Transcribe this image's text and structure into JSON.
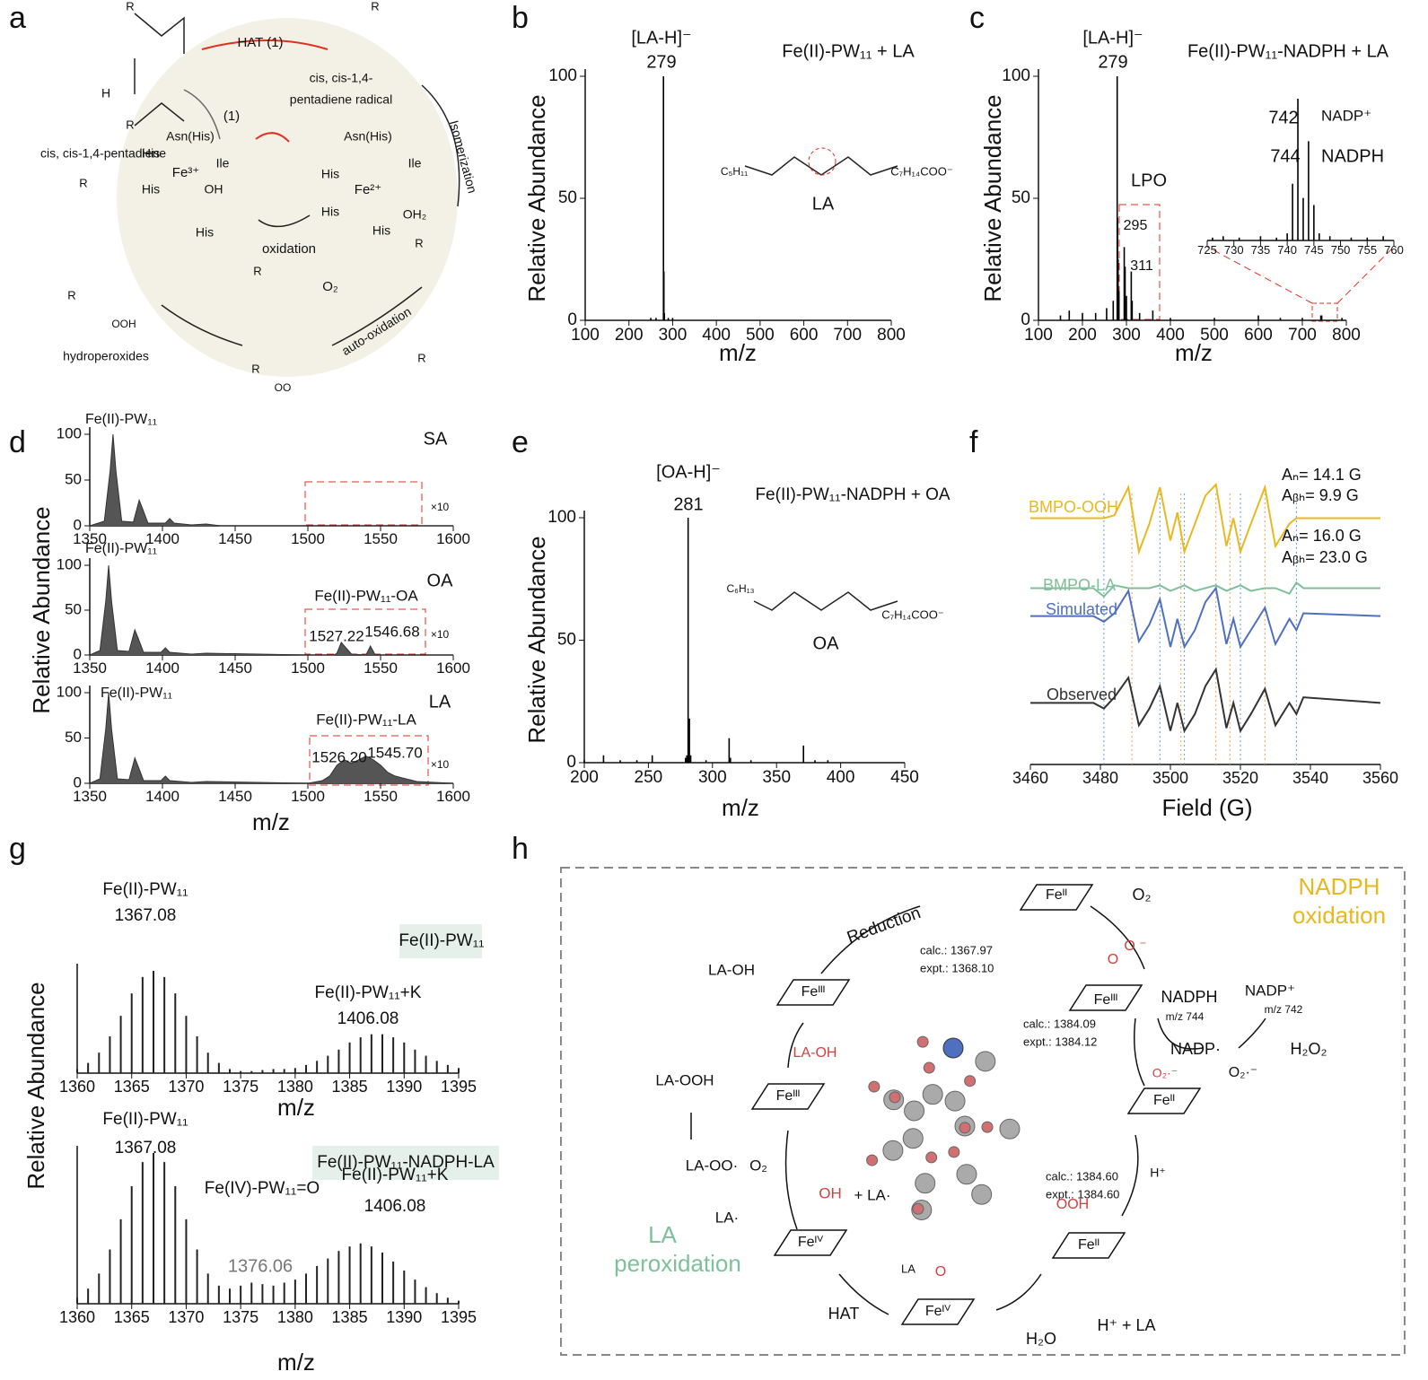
{
  "panel_labels": [
    "a",
    "b",
    "c",
    "d",
    "e",
    "f",
    "g",
    "h"
  ],
  "panel_a": {
    "labels": [
      "HAT (1)",
      "cis, cis-1,4-",
      "pentadiene radical",
      "Isomerization",
      "cis, cis-1,4-pentadiene",
      "(1)",
      "Asn(His)",
      "His",
      "Fe³⁺",
      "Ile",
      "His",
      "OH",
      "His",
      "Asn(His)",
      "His",
      "Fe²⁺",
      "Ile",
      "His",
      "OH₂",
      "His",
      "oxidation",
      "O₂",
      "auto-oxidation",
      "hydroperoxides",
      "OOH",
      "OO",
      "H",
      "R",
      "R",
      "R",
      "R",
      "R",
      "R",
      "R",
      "R",
      "R"
    ]
  },
  "chart_data": [
    {
      "type": "stem",
      "xlim": [
        100,
        800
      ],
      "ylim": [
        0,
        100
      ],
      "xticks": [
        100,
        200,
        300,
        400,
        500,
        600,
        700,
        800
      ],
      "yticks": [
        0,
        50,
        100
      ],
      "x": [
        250,
        262,
        279,
        280,
        281,
        290,
        300
      ],
      "values": [
        1,
        1,
        100,
        20,
        3,
        1,
        1
      ],
      "color": "#000000",
      "xlabel": "m/z",
      "ylabel": "Relative Abundance",
      "left_axis": true,
      "annotations": [
        "[LA-H]⁻",
        "279",
        "Fe(II)-PW₁₁ + LA",
        "LA",
        "C₅H₁₁",
        "C₇H₁₄COO⁻"
      ]
    },
    {
      "type": "stem",
      "xlim": [
        100,
        800
      ],
      "ylim": [
        0,
        100
      ],
      "xticks": [
        100,
        200,
        300,
        400,
        500,
        600,
        700,
        800
      ],
      "yticks": [
        0,
        50,
        100
      ],
      "x": [
        150,
        170,
        200,
        230,
        255,
        270,
        279,
        280,
        281,
        283,
        295,
        297,
        300,
        311,
        313,
        330,
        360,
        400,
        500,
        600,
        650,
        700,
        742,
        744,
        790
      ],
      "values": [
        2,
        4,
        3,
        3,
        5,
        8,
        100,
        42,
        25,
        12,
        30,
        22,
        10,
        20,
        8,
        3,
        4,
        1,
        1,
        2,
        1,
        1,
        2,
        2,
        1
      ],
      "color": "#000000",
      "xlabel": "m/z",
      "ylabel": "Relative Abundance",
      "left_axis": true,
      "annotations": [
        "[LA-H]⁻",
        "279",
        "Fe(II)-PW₁₁-NADPH + LA",
        "742",
        "NADP⁺",
        "744",
        "NADPH",
        "LPO",
        "295",
        "311"
      ]
    },
    {
      "type": "stem",
      "xlim": [
        725,
        760
      ],
      "ylim": [
        0,
        100
      ],
      "xticks": [
        725,
        730,
        735,
        740,
        745,
        750,
        755,
        760
      ],
      "x": [
        726,
        728,
        731,
        735,
        738,
        740,
        741,
        742,
        743,
        744,
        745,
        746,
        748,
        752,
        755,
        758
      ],
      "values": [
        2,
        3,
        2,
        3,
        2,
        5,
        40,
        100,
        30,
        70,
        25,
        5,
        3,
        2,
        2,
        3
      ],
      "color": "#000000",
      "left_axis": false,
      "annotations": []
    },
    {
      "type": "area",
      "xlim": [
        1350,
        1600
      ],
      "ylim": [
        0,
        100
      ],
      "xticks": [
        1350,
        1400,
        1450,
        1500,
        1550,
        1600
      ],
      "yticks": [
        0,
        50,
        100
      ],
      "x": [
        1350,
        1360,
        1364,
        1366,
        1368,
        1372,
        1380,
        1384,
        1386,
        1390,
        1402,
        1405,
        1408,
        1420,
        1430,
        1440,
        1600
      ],
      "values": [
        0,
        5,
        60,
        100,
        60,
        5,
        4,
        28,
        20,
        3,
        3,
        8,
        3,
        1,
        2,
        0,
        0
      ],
      "color": "#555555",
      "left_axis": true,
      "annotations": [
        "Fe(II)-PW₁₁",
        "SA",
        "×10"
      ]
    },
    {
      "type": "area",
      "xlim": [
        1350,
        1600
      ],
      "ylim": [
        0,
        100
      ],
      "xticks": [
        1350,
        1400,
        1450,
        1500,
        1550,
        1600
      ],
      "yticks": [
        0,
        50,
        100
      ],
      "x": [
        1350,
        1357,
        1361,
        1363,
        1365,
        1369,
        1377,
        1381,
        1383,
        1387,
        1399,
        1402,
        1405,
        1420,
        1430,
        1500,
        1518,
        1520,
        1523,
        1530,
        1540,
        1543,
        1546,
        1550,
        1600
      ],
      "values": [
        0,
        5,
        60,
        100,
        60,
        5,
        4,
        28,
        20,
        3,
        3,
        8,
        3,
        1,
        2,
        0,
        0,
        2,
        14,
        1,
        0,
        10,
        1,
        0,
        0
      ],
      "color": "#555555",
      "ylabel": "Relative Abundance",
      "left_axis": true,
      "annotations": [
        "Fe(II)-PW₁₁",
        "OA",
        "Fe(II)-PW₁₁-OA",
        "1527.22",
        "1546.68",
        "×10"
      ]
    },
    {
      "type": "area",
      "xlim": [
        1350,
        1600
      ],
      "ylim": [
        0,
        100
      ],
      "xticks": [
        1350,
        1400,
        1450,
        1500,
        1550,
        1600
      ],
      "yticks": [
        0,
        50,
        100
      ],
      "x": [
        1350,
        1357,
        1361,
        1363,
        1365,
        1369,
        1377,
        1381,
        1383,
        1387,
        1399,
        1402,
        1405,
        1420,
        1430,
        1500,
        1510,
        1515,
        1520,
        1525,
        1530,
        1535,
        1540,
        1545,
        1550,
        1555,
        1560,
        1565,
        1570,
        1575,
        1600
      ],
      "values": [
        0,
        5,
        60,
        100,
        60,
        5,
        4,
        28,
        20,
        3,
        3,
        8,
        3,
        1,
        2,
        0,
        3,
        8,
        20,
        26,
        22,
        26,
        30,
        26,
        20,
        12,
        8,
        6,
        4,
        2,
        0
      ],
      "color": "#555555",
      "xlabel": "m/z",
      "left_axis": true,
      "annotations": [
        "Fe(II)-PW₁₁",
        "LA",
        "Fe(II)-PW₁₁-LA",
        "1526.20",
        "1545.70",
        "×10"
      ]
    },
    {
      "type": "stem",
      "xlim": [
        200,
        450
      ],
      "ylim": [
        0,
        100
      ],
      "xticks": [
        200,
        250,
        300,
        350,
        400,
        450
      ],
      "yticks": [
        0,
        50,
        100
      ],
      "x": [
        200,
        215,
        228,
        241,
        253,
        279,
        280,
        281,
        282,
        283,
        295,
        313,
        314,
        330,
        371,
        380,
        390
      ],
      "values": [
        1,
        3,
        1,
        1,
        3,
        2,
        3,
        100,
        18,
        3,
        1,
        10,
        2,
        1,
        7,
        1,
        1
      ],
      "color": "#000000",
      "xlabel": "m/z",
      "ylabel": "Relative Abundance",
      "left_axis": true,
      "annotations": [
        "[OA-H]⁻",
        "281",
        "Fe(II)-PW₁₁-NADPH + OA",
        "OA",
        "C₆H₁₃",
        "C₇H₁₄COO⁻"
      ]
    },
    {
      "type": "line",
      "xlim": [
        3460,
        3560
      ],
      "ylim": [
        0,
        100
      ],
      "xticks": [
        3460,
        3480,
        3500,
        3520,
        3540,
        3560
      ],
      "xlabel": "Field (G)",
      "left_axis": false,
      "x": [
        3460,
        3478,
        3481,
        3484,
        3488,
        3491,
        3494,
        3497,
        3500,
        3502,
        3504,
        3507,
        3510,
        3513,
        3516,
        3518,
        3520,
        3523,
        3527,
        3530,
        3534,
        3536,
        3538,
        3560
      ],
      "series": [
        {
          "name": "BMPO-OOH",
          "color": "#e8b820",
          "values": [
            88,
            88,
            88,
            89,
            99,
            76,
            86,
            99,
            80,
            90,
            76,
            86,
            96,
            100,
            78,
            88,
            76,
            86,
            99,
            78,
            86,
            88,
            88,
            88
          ]
        },
        {
          "name": "BMPO-LA",
          "color": "#7fbf9a",
          "values": [
            63,
            63,
            60,
            64,
            63,
            63,
            63,
            64,
            62,
            63,
            64,
            62,
            63,
            64,
            62,
            63,
            64,
            62,
            63,
            63,
            61,
            65,
            63,
            63
          ]
        },
        {
          "name": "Simulated",
          "color": "#4f6fbf",
          "values": [
            53,
            53,
            51,
            54,
            62,
            44,
            50,
            59,
            42,
            52,
            42,
            48,
            58,
            63,
            43,
            52,
            42,
            48,
            56,
            43,
            52,
            48,
            54,
            53
          ]
        },
        {
          "name": "Observed",
          "color": "#333333",
          "values": [
            22,
            22,
            20,
            24,
            31,
            14,
            20,
            28,
            12,
            22,
            12,
            18,
            28,
            34,
            13,
            22,
            12,
            18,
            27,
            14,
            22,
            18,
            24,
            22
          ]
        }
      ],
      "reference_lines": [
        {
          "color": "#5aa0d8",
          "values": [
            3481,
            3497,
            3504,
            3520,
            3536
          ]
        },
        {
          "color": "#f0a050",
          "values": [
            3489,
            3503,
            3513,
            3517,
            3527
          ]
        }
      ],
      "annotations": [
        "Aₙ= 14.1 G",
        "Aᵦₕ= 9.9 G",
        "Aₙ= 16.0 G",
        "Aᵦₕ= 23.0 G"
      ]
    },
    {
      "type": "stem",
      "xlim": [
        1360,
        1395
      ],
      "ylim": [
        0,
        100
      ],
      "xticks": [
        1360,
        1365,
        1370,
        1375,
        1380,
        1385,
        1390,
        1395
      ],
      "x": [
        1360,
        1361,
        1362,
        1363,
        1364,
        1365,
        1366,
        1367,
        1368,
        1369,
        1370,
        1371,
        1372,
        1373,
        1374,
        1375,
        1376,
        1377,
        1378,
        1379,
        1380,
        1381,
        1382,
        1383,
        1384,
        1385,
        1386,
        1387,
        1388,
        1389,
        1390,
        1391,
        1392,
        1393,
        1394,
        1395
      ],
      "values": [
        4,
        10,
        20,
        36,
        56,
        78,
        94,
        100,
        94,
        78,
        56,
        36,
        20,
        10,
        4,
        2,
        2,
        3,
        4,
        4,
        5,
        8,
        12,
        17,
        23,
        30,
        35,
        38,
        38,
        35,
        30,
        23,
        17,
        12,
        8,
        5
      ],
      "color": "#222222",
      "xlabel": "m/z",
      "left_axis": true,
      "annotations": [
        "Fe(II)-PW₁₁",
        "1367.08",
        "Fe(II)-PW₁₁",
        "Fe(II)-PW₁₁+K",
        "1406.08"
      ]
    },
    {
      "type": "stem",
      "xlim": [
        1360,
        1395
      ],
      "ylim": [
        0,
        100
      ],
      "xticks": [
        1360,
        1365,
        1370,
        1375,
        1380,
        1385,
        1390,
        1395
      ],
      "x": [
        1360,
        1361,
        1362,
        1363,
        1364,
        1365,
        1366,
        1367,
        1368,
        1369,
        1370,
        1371,
        1372,
        1373,
        1374,
        1375,
        1376,
        1377,
        1378,
        1379,
        1380,
        1381,
        1382,
        1383,
        1384,
        1385,
        1386,
        1387,
        1388,
        1389,
        1390,
        1391,
        1392,
        1393,
        1394,
        1395
      ],
      "values": [
        4,
        10,
        20,
        36,
        56,
        78,
        94,
        100,
        94,
        78,
        56,
        36,
        20,
        12,
        10,
        12,
        14,
        13,
        12,
        14,
        16,
        20,
        25,
        30,
        35,
        38,
        40,
        38,
        34,
        28,
        22,
        16,
        11,
        7,
        4,
        2
      ],
      "color": "#222222",
      "xlabel": "m/z",
      "ylabel": "Relative Abundance",
      "left_axis": true,
      "annotations": [
        "Fe(II)-PW₁₁",
        "1367.08",
        "Fe(II)-PW₁₁-NADPH-LA",
        "Fe(IV)-PW₁₁=O",
        "1376.06",
        "Fe(II)-PW₁₁+K",
        "1406.08"
      ]
    }
  ],
  "panel_h": {
    "labels": [
      "NADPH",
      "oxidation",
      "LA",
      "peroxidation",
      "Reduction",
      "Feᴵᴵ",
      "O₂",
      "O",
      "O ⁻",
      "Feᴵᴵᴵ",
      "calc.: 1367.97",
      "expt.: 1368.10",
      "NADPH",
      "m/z 744",
      "NADP⁺",
      "m/z 742",
      "calc.: 1384.09",
      "expt.: 1384.12",
      "NADP·",
      "H₂O₂",
      "O₂·⁻",
      "O₂·⁻",
      "Feᴵᴵ",
      "calc.: 1384.60",
      "expt.: 1384.60",
      "H⁺",
      "OOH",
      "Feᴵᴵ",
      "O",
      "Feᴵⱽ",
      "H⁺ +  LA",
      "H₂O",
      "HAT",
      "LA",
      "Feᴵⱽ",
      "OH",
      "+  LA·",
      "LA·",
      "O₂",
      "LA-OO·",
      "LA-OOH",
      "Feᴵᴵᴵ",
      "LA-OH",
      "LA-OH",
      "Feᴵᴵᴵ"
    ]
  }
}
